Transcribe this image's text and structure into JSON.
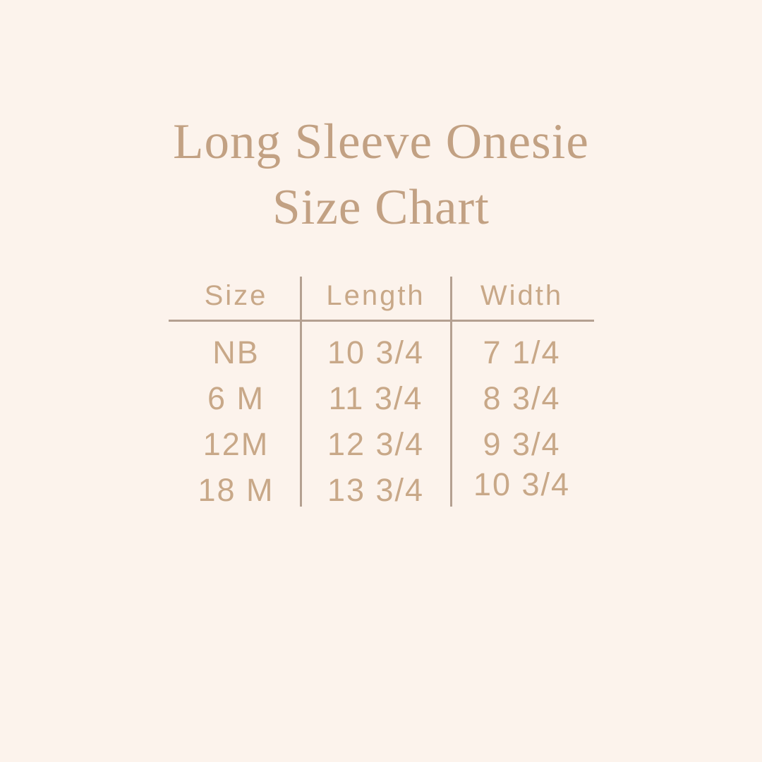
{
  "title": {
    "line1": "Long Sleeve Onesie",
    "line2": "Size Chart"
  },
  "table": {
    "headers": [
      "Size",
      "Length",
      "Width"
    ],
    "rows": [
      [
        "NB",
        "10 3/4",
        "7 1/4"
      ],
      [
        "6 M",
        "11 3/4",
        "8 3/4"
      ],
      [
        "12M",
        "12 3/4",
        "9 3/4"
      ],
      [
        "18 M",
        "13 3/4",
        "10 3/4"
      ]
    ]
  },
  "chart_data": {
    "type": "table",
    "title": "Long Sleeve Onesie Size Chart",
    "columns": [
      "Size",
      "Length",
      "Width"
    ],
    "rows": [
      {
        "size": "NB",
        "length": "10 3/4",
        "width": "7 1/4"
      },
      {
        "size": "6 M",
        "length": "11 3/4",
        "width": "8 3/4"
      },
      {
        "size": "12M",
        "length": "12 3/4",
        "width": "9 3/4"
      },
      {
        "size": "18 M",
        "length": "13 3/4",
        "width": "10 3/4"
      }
    ]
  },
  "colors": {
    "background": "#fcf3ec",
    "title_text": "#c2a183",
    "table_text": "#c8a888",
    "line": "#b4a091"
  }
}
